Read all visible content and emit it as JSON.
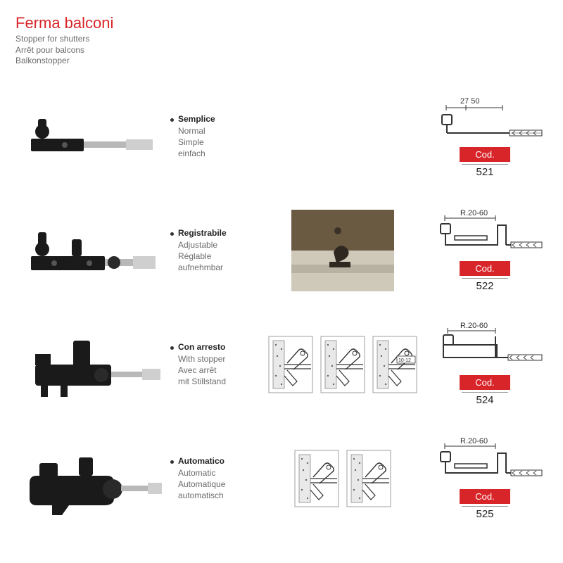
{
  "title": "Ferma balconi",
  "subtitles": [
    "Stopper for shutters",
    "Arrêt pour balcons",
    "Balkonstopper"
  ],
  "cod_label": "Cod.",
  "colors": {
    "accent": "#d8252a",
    "text_muted": "#6b6b6b",
    "text": "#222222",
    "metal": "#bfbfbf",
    "dark": "#2b2b2b"
  },
  "rows": [
    {
      "name_it": "Semplice",
      "names": [
        "Normal",
        "Simple",
        "einfach"
      ],
      "dim_label_top": "27     50",
      "dim_variant": "simple",
      "instructions": [],
      "photo": false,
      "code": "521"
    },
    {
      "name_it": "Registrabile",
      "names": [
        "Adjustable",
        "Réglable",
        "aufnehmbar"
      ],
      "dim_label_top": "R.20-60",
      "dim_variant": "slot",
      "instructions": [],
      "photo": true,
      "code": "522"
    },
    {
      "name_it": "Con arresto",
      "names": [
        "With stopper",
        "Avec arrêt",
        "mit Stillstand"
      ],
      "dim_label_top": "R.20-60",
      "dim_variant": "tall",
      "instructions": [
        "step",
        "step",
        "step-label"
      ],
      "instruction_label": "10-12",
      "photo": false,
      "code": "524"
    },
    {
      "name_it": "Automatico",
      "names": [
        "Automatic",
        "Automatique",
        "automatisch"
      ],
      "dim_label_top": "R.20-60",
      "dim_variant": "slot",
      "instructions": [
        "step",
        "step"
      ],
      "photo": false,
      "code": "525"
    }
  ]
}
